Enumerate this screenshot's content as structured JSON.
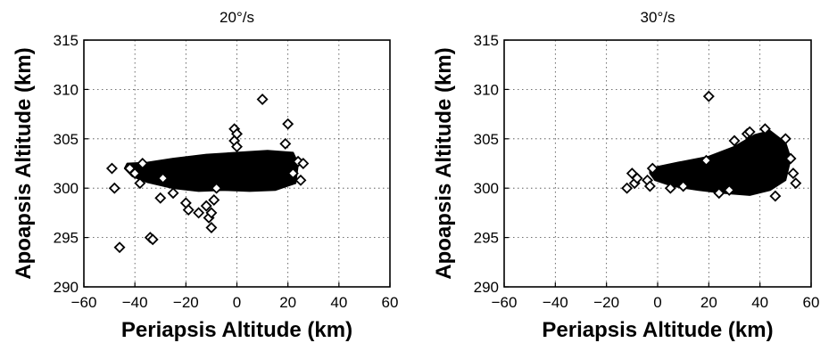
{
  "chart_data": [
    {
      "type": "scatter",
      "title": "20°/s",
      "xlabel": "Periapsis Altitude (km)",
      "ylabel": "Apoapsis Altitude (km)",
      "xlim": [
        -60,
        60
      ],
      "ylim": [
        290,
        315
      ],
      "xticks": [
        "−60",
        "−40",
        "−20",
        "0",
        "20",
        "40",
        "60"
      ],
      "yticks": [
        "290",
        "295",
        "300",
        "305",
        "310",
        "315"
      ],
      "grid": true,
      "marker": "diamond",
      "dense_region": [
        [
          -43,
          302.5
        ],
        [
          -35,
          302.6
        ],
        [
          -25,
          303.0
        ],
        [
          -12,
          303.4
        ],
        [
          0,
          303.6
        ],
        [
          12,
          303.8
        ],
        [
          22,
          303.6
        ],
        [
          24,
          302.5
        ],
        [
          23,
          300.5
        ],
        [
          15,
          299.8
        ],
        [
          5,
          299.7
        ],
        [
          -5,
          299.8
        ],
        [
          -15,
          299.7
        ],
        [
          -25,
          300.0
        ],
        [
          -35,
          300.6
        ],
        [
          -41,
          301.2
        ],
        [
          -44,
          302.0
        ]
      ],
      "x": [
        -49,
        -48,
        -46,
        -42,
        -40,
        -38,
        -37,
        -34,
        -33,
        -30,
        -29,
        -25,
        -20,
        -19,
        -15,
        -12,
        -11,
        -10,
        -10,
        -9,
        -8,
        -1,
        -1,
        0,
        0,
        10,
        20,
        19,
        24,
        26,
        22,
        25
      ],
      "y": [
        302.0,
        300.0,
        294.0,
        302.0,
        301.5,
        300.5,
        302.5,
        295.0,
        294.8,
        299.0,
        301.0,
        299.5,
        298.5,
        297.8,
        297.5,
        298.2,
        297.0,
        296.0,
        297.5,
        298.8,
        300.0,
        306.0,
        304.8,
        305.5,
        304.2,
        309.0,
        306.5,
        304.5,
        302.7,
        302.5,
        301.5,
        300.8
      ]
    },
    {
      "type": "scatter",
      "title": "30°/s",
      "xlabel": "Periapsis Altitude (km)",
      "ylabel": "Apoapsis Altitude (km)",
      "xlim": [
        -60,
        60
      ],
      "ylim": [
        290,
        315
      ],
      "xticks": [
        "−60",
        "−40",
        "−20",
        "0",
        "20",
        "40",
        "60"
      ],
      "yticks": [
        "290",
        "295",
        "300",
        "305",
        "310",
        "315"
      ],
      "grid": true,
      "marker": "diamond",
      "dense_region": [
        [
          -3,
          302.0
        ],
        [
          8,
          302.6
        ],
        [
          20,
          303.2
        ],
        [
          30,
          304.2
        ],
        [
          38,
          305.4
        ],
        [
          44,
          305.8
        ],
        [
          50,
          304.6
        ],
        [
          52,
          303.0
        ],
        [
          50,
          300.8
        ],
        [
          44,
          299.8
        ],
        [
          36,
          299.3
        ],
        [
          26,
          299.5
        ],
        [
          16,
          299.8
        ],
        [
          6,
          300.2
        ],
        [
          -1,
          300.8
        ],
        [
          -3,
          301.5
        ]
      ],
      "x": [
        -12,
        -10,
        -9,
        -8,
        -4,
        -3,
        -2,
        5,
        10,
        20,
        19,
        24,
        28,
        35,
        42,
        46,
        50,
        52,
        53,
        54,
        36,
        30
      ],
      "y": [
        300.0,
        301.5,
        300.5,
        301.0,
        300.8,
        300.2,
        302.0,
        300.0,
        300.2,
        309.3,
        302.8,
        299.5,
        299.8,
        305.5,
        306.0,
        299.2,
        305.0,
        303.0,
        301.5,
        300.5,
        305.7,
        304.8
      ]
    }
  ]
}
